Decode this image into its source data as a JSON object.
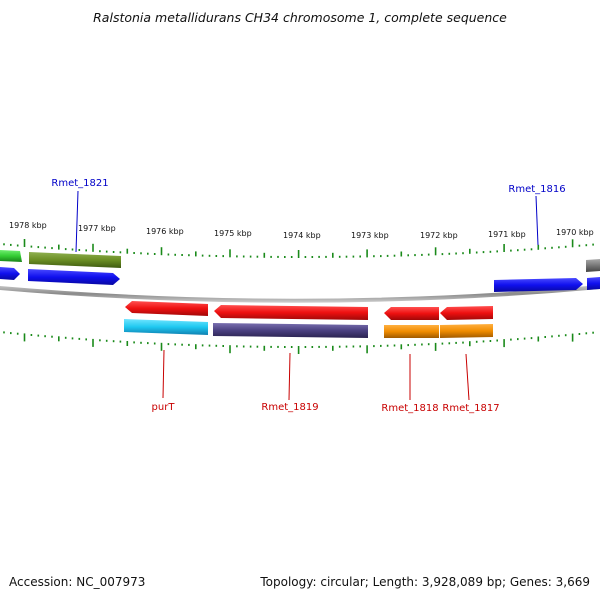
{
  "title": "Ralstonia metallidurans CH34 chromosome 1, complete sequence",
  "footer": {
    "accession": "Accession: NC_007973",
    "topology": "Topology: circular; Length: 3,928,089 bp; Genes: 3,669"
  },
  "ruler": {
    "tick_labels": [
      "1978 kbp",
      "1977 kbp",
      "1976 kbp",
      "1975 kbp",
      "1974 kbp",
      "1973 kbp",
      "1972 kbp",
      "1971 kbp",
      "1970 kbp"
    ]
  },
  "gene_labels": [
    {
      "text": "Rmet_1821",
      "color": "#0000c8"
    },
    {
      "text": "Rmet_1816",
      "color": "#0000c8"
    },
    {
      "text": "purT",
      "color": "#c80000"
    },
    {
      "text": "Rmet_1819",
      "color": "#c80000"
    },
    {
      "text": "Rmet_1818",
      "color": "#c80000"
    },
    {
      "text": "Rmet_1817",
      "color": "#c80000"
    }
  ],
  "colors": {
    "tick": "#1a8a1a",
    "backbone": "#8a8a8a",
    "forward_gene": "#1010ff",
    "reverse_gene": "#f01010",
    "forward_feature_green": "#6b8e23",
    "forward_feature_lime": "#33cc33",
    "reverse_feature_cyan": "#1ec8f0",
    "reverse_feature_purple": "#4a4080",
    "reverse_feature_orange": "#f08c00",
    "grey_feature": "#777777"
  }
}
